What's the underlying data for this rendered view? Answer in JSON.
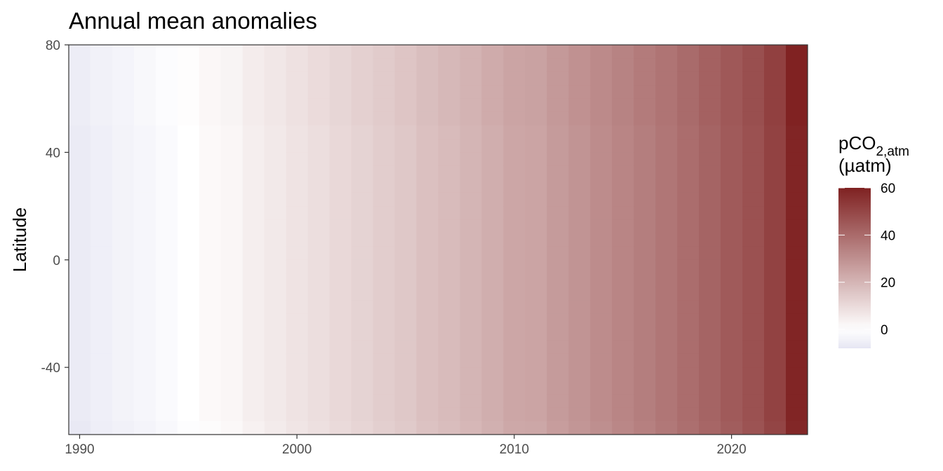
{
  "chart_data": {
    "type": "heatmap",
    "title": "Annual mean anomalies",
    "xlabel": "",
    "ylabel": "Latitude",
    "x_ticks": [
      1990,
      2000,
      2010,
      2020
    ],
    "y_ticks": [
      80,
      40,
      0,
      -40
    ],
    "x_range": [
      1989.5,
      2023.5
    ],
    "y_range": [
      -65,
      80
    ],
    "grid": false,
    "legend": {
      "title_main": "pCO",
      "title_sub": "2,atm",
      "title_unit": "(µatm)",
      "ticks": [
        60,
        40,
        20,
        0
      ],
      "range": [
        -8,
        60
      ],
      "colors": {
        "low": "#e6e6f3",
        "mid": "#ffffff",
        "high": "#7f2121"
      },
      "position": "right"
    },
    "years": [
      1990,
      1991,
      1992,
      1993,
      1994,
      1995,
      1996,
      1997,
      1998,
      1999,
      2000,
      2001,
      2002,
      2003,
      2004,
      2005,
      2006,
      2007,
      2008,
      2009,
      2010,
      2011,
      2012,
      2013,
      2014,
      2015,
      2016,
      2017,
      2018,
      2019,
      2020,
      2021,
      2022,
      2023
    ],
    "latitude_bands": [
      80,
      75,
      70,
      65,
      60,
      55,
      50,
      45,
      40,
      35,
      30,
      25,
      20,
      15,
      10,
      5,
      0,
      -5,
      -10,
      -15,
      -20,
      -25,
      -30,
      -35,
      -40,
      -45,
      -50,
      -55,
      -60,
      -65
    ],
    "anomaly_by_year": [
      -6.5,
      -5,
      -4,
      -3,
      -1.5,
      0,
      1.5,
      2.5,
      4.5,
      6,
      7.5,
      9,
      10.5,
      12,
      13.5,
      15,
      17,
      18.5,
      20,
      22,
      24,
      24.5,
      27,
      29,
      31,
      33,
      35,
      37,
      39.5,
      42,
      44.5,
      47,
      51,
      59
    ]
  }
}
